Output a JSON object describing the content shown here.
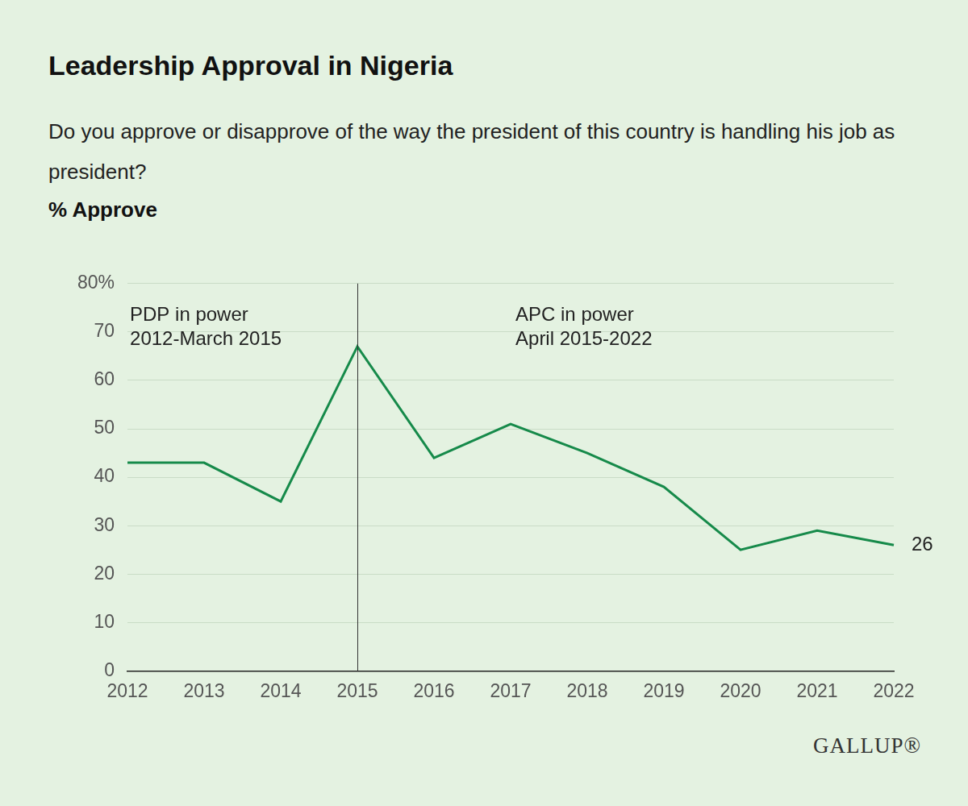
{
  "chart_data": {
    "type": "line",
    "title": "Leadership Approval in Nigeria",
    "subtitle": "Do you approve or disapprove of the way the president of this country is handling his job as president?",
    "y_label": "% Approve",
    "categories": [
      "2012",
      "2013",
      "2014",
      "2015",
      "2016",
      "2017",
      "2018",
      "2019",
      "2020",
      "2021",
      "2022"
    ],
    "values": [
      43,
      43,
      35,
      67,
      44,
      51,
      45,
      38,
      25,
      29,
      26
    ],
    "color": "#168a4a",
    "ylim": [
      0,
      80
    ],
    "yticks": [
      0,
      10,
      20,
      30,
      40,
      50,
      60,
      70,
      {
        "value": 80,
        "label": "80%"
      }
    ],
    "grid": true,
    "annotations": {
      "divider": "2015",
      "left": [
        "PDP in power",
        "2012-March 2015"
      ],
      "right": [
        "APC in power",
        "April 2015-2022"
      ]
    },
    "source": "GALLUP®"
  }
}
